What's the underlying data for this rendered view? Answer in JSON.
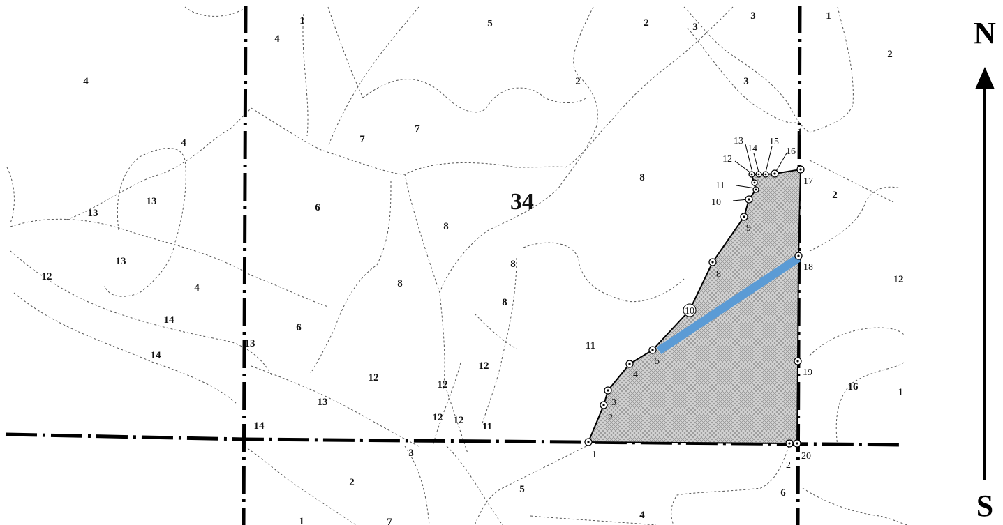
{
  "section_number": "34",
  "compass": {
    "north": "N",
    "south": "S"
  },
  "soil_labels": {
    "l1": "1",
    "l2": "4",
    "l3": "5",
    "l4": "2",
    "l5": "3",
    "l6": "3",
    "l7": "1",
    "l8": "2",
    "l9": "4",
    "l10": "2",
    "l11": "3",
    "l12": "7",
    "l13": "7",
    "l14": "4",
    "l15": "13",
    "l16": "13",
    "l17": "6",
    "l18": "8",
    "l19": "8",
    "l20": "2",
    "l21": "13",
    "l22": "12",
    "l23": "4",
    "l24": "8",
    "l25": "8",
    "l26": "14",
    "l27": "6",
    "l28": "14",
    "l29": "13",
    "l30": "11",
    "l31": "12",
    "l32": "12",
    "l33": "12",
    "l34": "13",
    "l35": "12",
    "l36": "12",
    "l37": "11",
    "l38": "14",
    "l39": "16",
    "l40": "3",
    "l41": "2",
    "l42": "5",
    "l43": "6",
    "l44": "4",
    "l45": "1",
    "l46": "7",
    "l47": "1",
    "l48": "1",
    "l49": "12"
  },
  "survey_points": {
    "p1": "1",
    "p2": "2",
    "p3": "3",
    "p4": "4",
    "p5": "5",
    "p8": "8",
    "p9": "9",
    "p10": "10",
    "p11": "11",
    "p12": "12",
    "p13": "13",
    "p14": "14",
    "p15": "15",
    "p16": "16",
    "p17": "17",
    "p18": "18",
    "p19": "19",
    "p20": "20",
    "p21": "2",
    "p22": "10"
  },
  "colors": {
    "parcel_fill": "#cfcfcf",
    "highlight": "#5b9bd5",
    "boundary": "#000000",
    "soil_line": "#555555"
  }
}
